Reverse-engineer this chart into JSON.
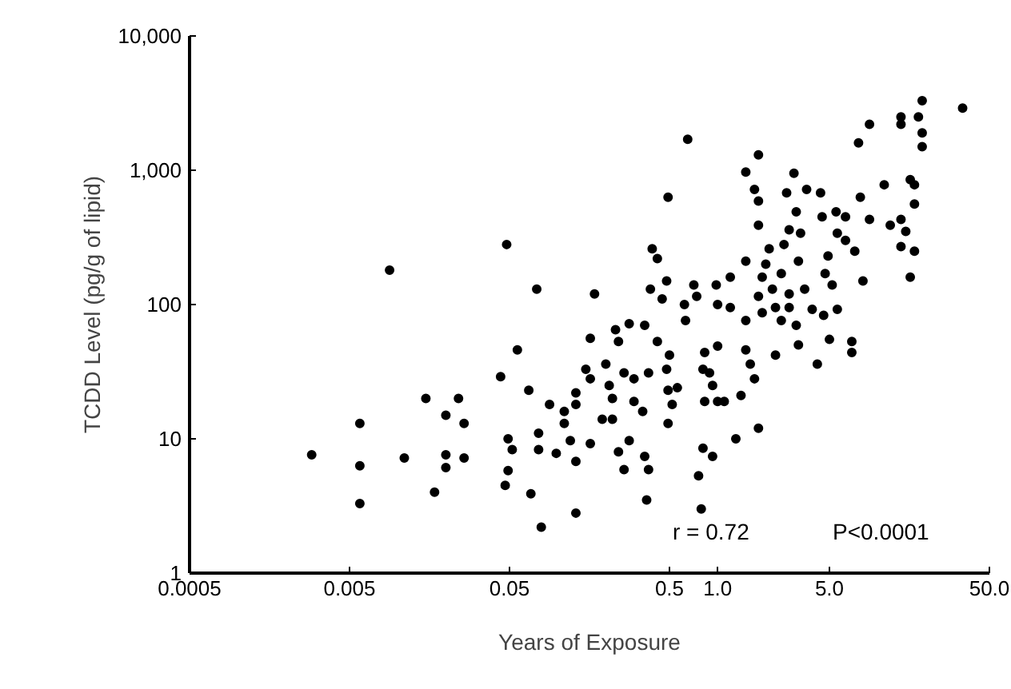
{
  "chart_data": {
    "type": "scatter",
    "xlabel": "Years of Exposure",
    "ylabel": "TCDD Level (pg/g of lipid)",
    "annotations": [
      "r = 0.72",
      "P<0.0001"
    ],
    "log": "xy",
    "grid": false,
    "marker": "circle",
    "xlim": [
      0.0005,
      50
    ],
    "ylim": [
      1,
      10000
    ],
    "xticks": [
      0.0005,
      0.005,
      0.05,
      0.5,
      {
        "value": 1,
        "label": "1.0"
      },
      {
        "value": 5,
        "label": "5.0"
      },
      {
        "value": 50,
        "label": "50.0"
      }
    ],
    "yticks": [
      1,
      10,
      100,
      {
        "value": 1000,
        "label": "1,000"
      },
      {
        "value": 10000,
        "label": "10,000"
      }
    ],
    "series": [
      {
        "color": "#000000",
        "x": [
          0.0029,
          0.0058,
          0.0058,
          0.0058,
          0.0089,
          0.011,
          0.017,
          0.015,
          0.02,
          0.02,
          0.02,
          0.024,
          0.026,
          0.026,
          0.044,
          0.048,
          0.049,
          0.052,
          0.047,
          0.049,
          0.066,
          0.074,
          0.056,
          0.068,
          0.076,
          0.076,
          0.079,
          0.17,
          0.16,
          0.13,
          0.089,
          0.098,
          0.11,
          0.11,
          0.12,
          0.13,
          0.13,
          0.13,
          0.15,
          0.16,
          0.16,
          0.19,
          0.2,
          0.21,
          0.22,
          0.22,
          0.24,
          0.24,
          0.23,
          0.26,
          0.28,
          0.28,
          0.26,
          0.3,
          0.3,
          0.34,
          0.35,
          0.37,
          0.36,
          0.37,
          0.35,
          0.38,
          0.39,
          0.42,
          0.42,
          0.45,
          0.48,
          0.48,
          0.49,
          0.49,
          0.5,
          0.52,
          0.56,
          0.62,
          0.63,
          0.65,
          0.49,
          0.71,
          0.74,
          0.76,
          0.79,
          0.81,
          0.83,
          0.81,
          0.83,
          0.89,
          0.93,
          0.93,
          0.98,
          1.0,
          1.0,
          1.0,
          1.1,
          1.2,
          1.2,
          1.3,
          1.4,
          1.5,
          1.5,
          1.5,
          1.5,
          1.6,
          1.7,
          1.8,
          1.7,
          1.8,
          1.8,
          1.8,
          1.8,
          1.9,
          1.9,
          2.0,
          2.1,
          2.2,
          2.3,
          2.3,
          2.5,
          2.5,
          2.6,
          2.7,
          2.8,
          2.8,
          2.8,
          3.1,
          3.0,
          3.1,
          3.2,
          3.3,
          3.2,
          3.5,
          3.6,
          3.9,
          4.2,
          4.4,
          4.5,
          4.6,
          4.7,
          4.9,
          5.0,
          5.2,
          5.5,
          5.6,
          5.6,
          6.3,
          6.3,
          6.9,
          6.9,
          7.2,
          7.6,
          7.8,
          8.1,
          8.9,
          8.9,
          11,
          12,
          14,
          14,
          14,
          14,
          15,
          16,
          16,
          17,
          17,
          17,
          18,
          19,
          19,
          19,
          34
        ],
        "values": [
          7.6,
          13,
          6.3,
          3.3,
          180,
          7.2,
          4.0,
          20,
          15,
          7.6,
          6.1,
          20,
          13,
          7.2,
          29,
          280,
          10,
          8.3,
          4.5,
          5.8,
          23,
          130,
          46,
          3.9,
          11,
          8.3,
          2.2,
          120,
          56,
          2.8,
          18,
          7.8,
          16,
          13,
          9.7,
          18,
          22,
          6.8,
          33,
          28,
          9.2,
          14,
          36,
          25,
          20,
          14,
          53,
          8.0,
          65,
          5.9,
          9.7,
          72,
          31,
          28,
          19,
          16,
          7.4,
          5.9,
          3.5,
          31,
          70,
          130,
          260,
          220,
          53,
          110,
          150,
          33,
          23,
          13,
          42,
          18,
          24,
          100,
          76,
          1700,
          630,
          140,
          115,
          5.3,
          3.0,
          8.5,
          44,
          33,
          19,
          31,
          25,
          7.4,
          140,
          100,
          19,
          49,
          19,
          95,
          160,
          10,
          21,
          970,
          210,
          76,
          46,
          36,
          28,
          12,
          720,
          590,
          1300,
          390,
          115,
          160,
          87,
          200,
          260,
          130,
          95,
          42,
          76,
          170,
          280,
          680,
          360,
          120,
          95,
          70,
          950,
          490,
          210,
          340,
          50,
          130,
          720,
          92,
          36,
          680,
          450,
          83,
          170,
          230,
          55,
          140,
          490,
          92,
          340,
          450,
          300,
          53,
          44,
          250,
          1600,
          630,
          150,
          2200,
          430,
          780,
          390,
          430,
          2500,
          2200,
          270,
          350,
          160,
          850,
          780,
          560,
          250,
          2500,
          1900,
          1500,
          3300,
          2900
        ]
      }
    ]
  }
}
